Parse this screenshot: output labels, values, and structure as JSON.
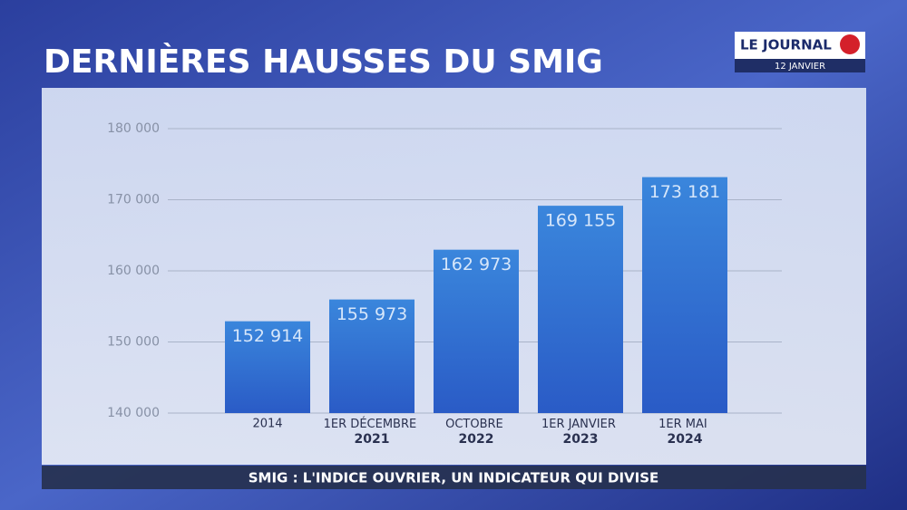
{
  "chart_data": {
    "type": "bar",
    "title": "DERNIÈRES HAUSSES DU SMIG",
    "categories": [
      "2014",
      "1ER DÉCEMBRE 2021",
      "OCTOBRE 2022",
      "1ER JANVIER 2023",
      "1ER MAI 2024"
    ],
    "values": [
      152914,
      155973,
      162973,
      169155,
      173181
    ],
    "value_labels": [
      "152 914",
      "155 973",
      "162 973",
      "169 155",
      "173 181"
    ],
    "color": "#3a86dc",
    "ylim": [
      140000,
      180000
    ],
    "yticks": [
      {
        "value": 140000,
        "label": "140 000"
      },
      {
        "value": 150000,
        "label": "150 000"
      },
      {
        "value": 160000,
        "label": "160 000"
      },
      {
        "value": 170000,
        "label": "170 000"
      },
      {
        "value": 180000,
        "label": "180 000"
      }
    ],
    "grid": true
  },
  "logo": {
    "name": "LE JOURNAL",
    "date": "12 JANVIER"
  },
  "ticker": "SMIG : L'INDICE OUVRIER, UN INDICATEUR QUI DIVISE"
}
